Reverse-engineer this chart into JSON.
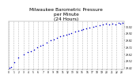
{
  "title": "Milwaukee Barometric Pressure\nper Minute\n(24 Hours)",
  "title_fontsize": 4.2,
  "bg_color": "#ffffff",
  "plot_bg_color": "#ffffff",
  "text_color": "#000000",
  "grid_color": "#aaaaaa",
  "dot_color": "#0000cc",
  "dot_size": 1.2,
  "xlim": [
    0,
    23.5
  ],
  "ylim": [
    29.4,
    30.1
  ],
  "xticks": [
    0,
    1,
    2,
    3,
    4,
    5,
    6,
    7,
    8,
    9,
    10,
    11,
    12,
    13,
    14,
    15,
    16,
    17,
    18,
    19,
    20,
    21,
    22,
    23
  ],
  "ytick_values": [
    29.42,
    29.52,
    29.62,
    29.72,
    29.82,
    29.92,
    30.02
  ],
  "x_data": [
    0.1,
    0.5,
    1.2,
    2.0,
    3.0,
    3.8,
    4.5,
    5.2,
    5.8,
    6.5,
    7.0,
    7.8,
    8.5,
    9.2,
    9.8,
    10.5,
    11.2,
    11.8,
    12.2,
    12.8,
    13.5,
    14.2,
    14.8,
    15.2,
    15.8,
    16.5,
    17.2,
    17.8,
    18.5,
    19.2,
    19.8,
    20.5,
    21.2,
    21.8,
    22.5,
    22.8,
    23.2
  ],
  "y_data": [
    29.43,
    29.44,
    29.5,
    29.57,
    29.62,
    29.65,
    29.67,
    29.69,
    29.72,
    29.74,
    29.76,
    29.79,
    29.82,
    29.84,
    29.86,
    29.88,
    29.89,
    29.9,
    29.91,
    29.93,
    29.95,
    29.96,
    29.97,
    29.98,
    29.99,
    30.01,
    30.02,
    30.03,
    30.04,
    30.05,
    30.06,
    30.05,
    30.06,
    30.05,
    30.07,
    30.06,
    30.07
  ]
}
